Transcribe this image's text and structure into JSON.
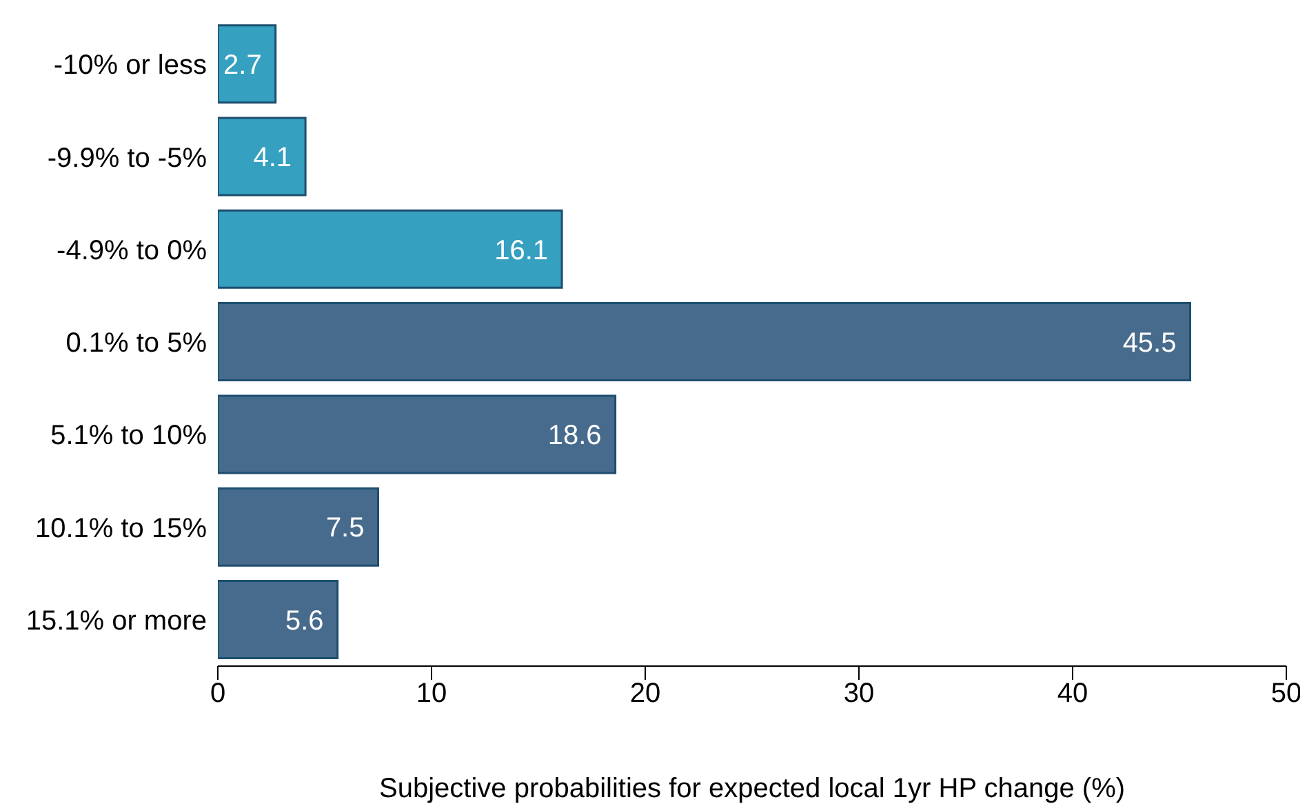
{
  "chart_data": {
    "type": "bar",
    "orientation": "horizontal",
    "xlabel": "Subjective probabilities for expected local 1yr HP change (%)",
    "categories": [
      "-10% or less",
      "-9.9% to -5%",
      "-4.9% to 0%",
      "0.1% to 5%",
      "5.1% to 10%",
      "10.1% to 15%",
      "15.1% or more"
    ],
    "values": [
      2.7,
      4.1,
      16.1,
      45.5,
      18.6,
      7.5,
      5.6
    ],
    "colors": [
      "#35a0c0",
      "#35a0c0",
      "#35a0c0",
      "#476b8c",
      "#476b8c",
      "#476b8c",
      "#476b8c"
    ],
    "xlim": [
      0,
      50
    ],
    "xticks": [
      0,
      10,
      20,
      30,
      40,
      50
    ],
    "data_labels": true,
    "grid": false,
    "legend": false
  }
}
